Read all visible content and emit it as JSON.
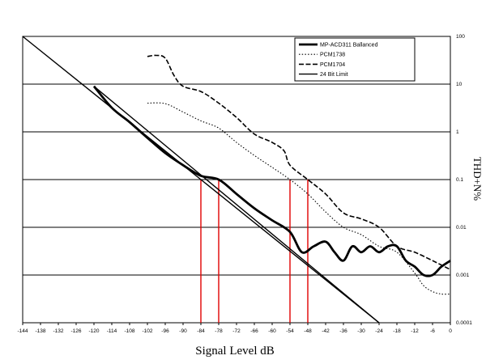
{
  "chart_data": {
    "type": "line",
    "title": "",
    "xlabel": "Signal Level dB",
    "ylabel": "THD+N%",
    "xlim": [
      -144,
      0
    ],
    "ylim": [
      0.0001,
      100
    ],
    "y_scale": "log",
    "grid": true,
    "legend_position": "top-right",
    "x_ticks": [
      "-144",
      "-138",
      "-132",
      "-126",
      "-120",
      "-114",
      "-108",
      "-102",
      "-96",
      "-90",
      "-84",
      "-78",
      "-72",
      "-66",
      "-60",
      "-54",
      "-48",
      "-42",
      "-36",
      "-30",
      "-24",
      "-18",
      "-12",
      "-6",
      "0"
    ],
    "y_ticks": [
      {
        "value": 100,
        "label": "100"
      },
      {
        "value": 10,
        "label": "10"
      },
      {
        "value": 1,
        "label": "1"
      },
      {
        "value": 0.1,
        "label": "0.1"
      },
      {
        "value": 0.01,
        "label": "0.01"
      },
      {
        "value": 0.001,
        "label": "0.001"
      },
      {
        "value": 0.0001,
        "label": "0.0001"
      }
    ],
    "series": [
      {
        "name": "MP-ACD311 Ballanced",
        "style": "thick",
        "color": "#000000",
        "points": [
          [
            -120,
            9
          ],
          [
            -114,
            3.2
          ],
          [
            -108,
            1.6
          ],
          [
            -102,
            0.75
          ],
          [
            -96,
            0.36
          ],
          [
            -90,
            0.2
          ],
          [
            -84,
            0.12
          ],
          [
            -78,
            0.1
          ],
          [
            -72,
            0.05
          ],
          [
            -66,
            0.025
          ],
          [
            -60,
            0.014
          ],
          [
            -54,
            0.008
          ],
          [
            -50,
            0.003
          ],
          [
            -46,
            0.004
          ],
          [
            -42,
            0.005
          ],
          [
            -39,
            0.003
          ],
          [
            -36,
            0.002
          ],
          [
            -33,
            0.004
          ],
          [
            -30,
            0.003
          ],
          [
            -27,
            0.004
          ],
          [
            -24,
            0.003
          ],
          [
            -21,
            0.004
          ],
          [
            -18,
            0.004
          ],
          [
            -15,
            0.002
          ],
          [
            -12,
            0.0015
          ],
          [
            -9,
            0.001
          ],
          [
            -6,
            0.001
          ],
          [
            -3,
            0.0015
          ],
          [
            0,
            0.002
          ]
        ]
      },
      {
        "name": "PCM1738",
        "style": "dotted",
        "color": "#000000",
        "points": [
          [
            -102,
            4
          ],
          [
            -96,
            3.9
          ],
          [
            -90,
            2.6
          ],
          [
            -84,
            1.7
          ],
          [
            -78,
            1.2
          ],
          [
            -72,
            0.6
          ],
          [
            -66,
            0.32
          ],
          [
            -60,
            0.18
          ],
          [
            -54,
            0.1
          ],
          [
            -48,
            0.05
          ],
          [
            -42,
            0.021
          ],
          [
            -36,
            0.01
          ],
          [
            -30,
            0.007
          ],
          [
            -24,
            0.004
          ],
          [
            -18,
            0.003
          ],
          [
            -12,
            0.0011
          ],
          [
            -9,
            0.0006
          ],
          [
            -6,
            0.00045
          ],
          [
            -3,
            0.0004
          ],
          [
            0,
            0.0004
          ]
        ]
      },
      {
        "name": "PCM1704",
        "style": "dashed",
        "color": "#000000",
        "points": [
          [
            -102,
            38
          ],
          [
            -99,
            40
          ],
          [
            -96,
            35
          ],
          [
            -93,
            15
          ],
          [
            -90,
            9
          ],
          [
            -84,
            7
          ],
          [
            -78,
            4
          ],
          [
            -72,
            2
          ],
          [
            -66,
            0.9
          ],
          [
            -60,
            0.6
          ],
          [
            -56,
            0.4
          ],
          [
            -54,
            0.2
          ],
          [
            -48,
            0.1
          ],
          [
            -42,
            0.05
          ],
          [
            -36,
            0.02
          ],
          [
            -30,
            0.015
          ],
          [
            -24,
            0.01
          ],
          [
            -18,
            0.004
          ],
          [
            -12,
            0.003
          ],
          [
            -6,
            0.002
          ],
          [
            0,
            0.0013
          ]
        ]
      },
      {
        "name": "24 Bit Limit",
        "style": "solid",
        "color": "#000000",
        "points": [
          [
            -120,
            9
          ],
          [
            -24,
            0.0001
          ]
        ]
      }
    ],
    "reference_line": {
      "name": "",
      "color": "#000000",
      "points": [
        [
          -144,
          100
        ],
        [
          -24,
          0.0001
        ]
      ]
    },
    "markers": {
      "color": "#e00000",
      "x": [
        -84,
        -78,
        -54,
        -48
      ],
      "y": 0.1
    }
  }
}
